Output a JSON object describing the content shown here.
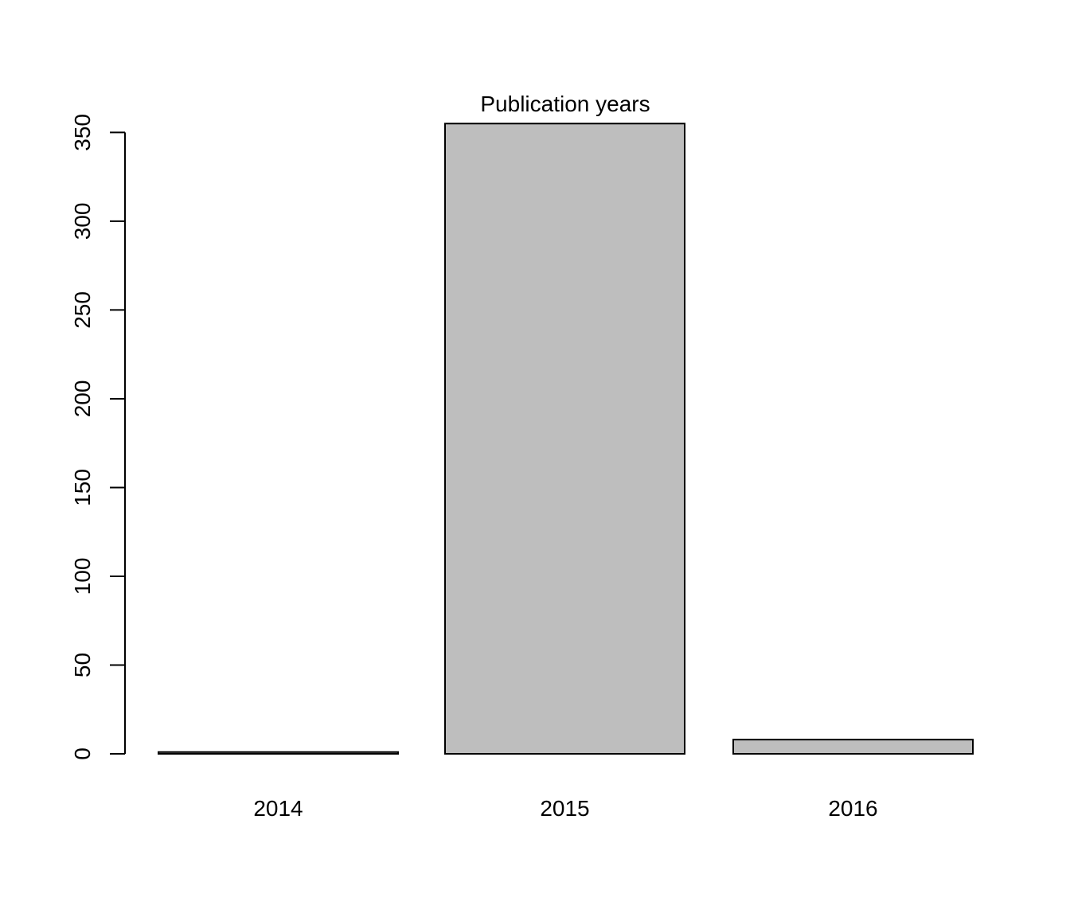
{
  "chart_data": {
    "type": "bar",
    "title": "Publication years",
    "xlabel": "",
    "ylabel": "",
    "categories": [
      "2014",
      "2015",
      "2016"
    ],
    "values": [
      1,
      355,
      8
    ],
    "ylim": [
      0,
      355
    ],
    "yticks": [
      0,
      50,
      100,
      150,
      200,
      250,
      300,
      350
    ],
    "ytick_labels": [
      "0",
      "50",
      "100",
      "150",
      "200",
      "250",
      "300",
      "350"
    ],
    "grid": false,
    "legend": "none",
    "colors": {
      "bar_fill": "#bebebe",
      "bar_stroke": "#000000",
      "axis": "#000000",
      "background": "#ffffff"
    }
  }
}
